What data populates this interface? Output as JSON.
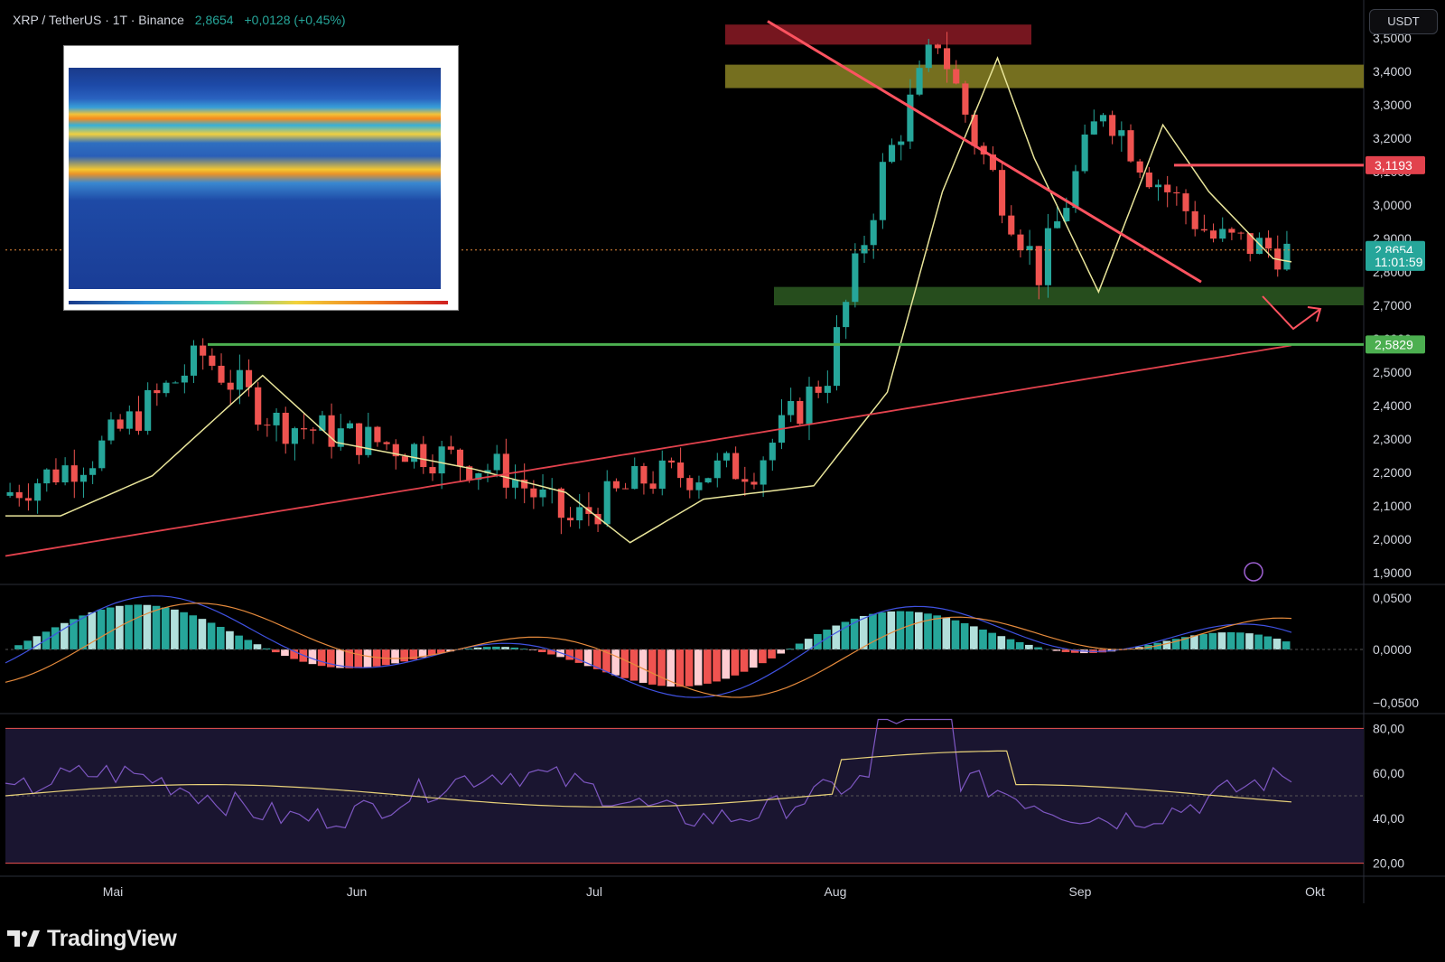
{
  "header": {
    "symbol": "XRP / TetherUS · 1T · Binance",
    "price": "2,8654",
    "change": "+0,0128 (+0,45%)"
  },
  "currency_button": "USDT",
  "brand": "TradingView",
  "colors": {
    "up": "#26a69a",
    "down": "#ef5350",
    "ema_fast": "#e9e59a",
    "ema_slow": "#e2424d",
    "resistance_line": "#ff5360",
    "support_line": "#4caf50",
    "zone_red": "#8b1a25",
    "zone_yellow": "#8a8324",
    "zone_green": "#2d5a22",
    "macd_line": "#3f51e0",
    "signal_line": "#e58a3c",
    "rsi_line": "#7e57c2",
    "rsi_ma": "#e9d27a"
  },
  "chart_data": {
    "type": "candlestick",
    "price_axis": {
      "ticks": [
        "3,5000",
        "3,4000",
        "3,3000",
        "3,2000",
        "3,1000",
        "3,0000",
        "2,9000",
        "2,8000",
        "2,7000",
        "2,6000",
        "2,5000",
        "2,4000",
        "2,3000",
        "2,2000",
        "2,1000",
        "2,0000",
        "1,9000"
      ],
      "range": [
        1.9,
        3.54
      ]
    },
    "x_axis": {
      "labels": [
        "Mai",
        "Jun",
        "Jul",
        "Aug",
        "Sep",
        "Okt"
      ]
    },
    "price_labels": [
      {
        "text": "3,1193",
        "value": 3.1193,
        "color": "#e2424d"
      },
      {
        "text": "2,8654",
        "value": 2.8654,
        "color": "#26a69a"
      },
      {
        "text": "11:01:59",
        "value": 2.83,
        "color": "#26a69a"
      },
      {
        "text": "2,5829",
        "value": 2.5829,
        "color": "#4caf50"
      }
    ],
    "zones": [
      {
        "name": "supply-zone-top",
        "from": 3.48,
        "to": 3.54,
        "color": "zone_red"
      },
      {
        "name": "resistance-zone",
        "from": 3.35,
        "to": 3.42,
        "color": "zone_yellow"
      },
      {
        "name": "support-zone",
        "from": 2.7,
        "to": 2.755,
        "color": "zone_green"
      }
    ],
    "horizontal_levels": [
      {
        "name": "resistance-level",
        "value": 3.1193
      },
      {
        "name": "support-level",
        "value": 2.5829
      }
    ],
    "macd": {
      "ticks": [
        "0,0500",
        "0,0000",
        "−0,0500"
      ],
      "range": [
        -0.06,
        0.06
      ]
    },
    "rsi": {
      "ticks": [
        "80,00",
        "60,00",
        "40,00",
        "20,00"
      ],
      "range": [
        15,
        85
      ],
      "bands": [
        80,
        20,
        50
      ]
    }
  }
}
